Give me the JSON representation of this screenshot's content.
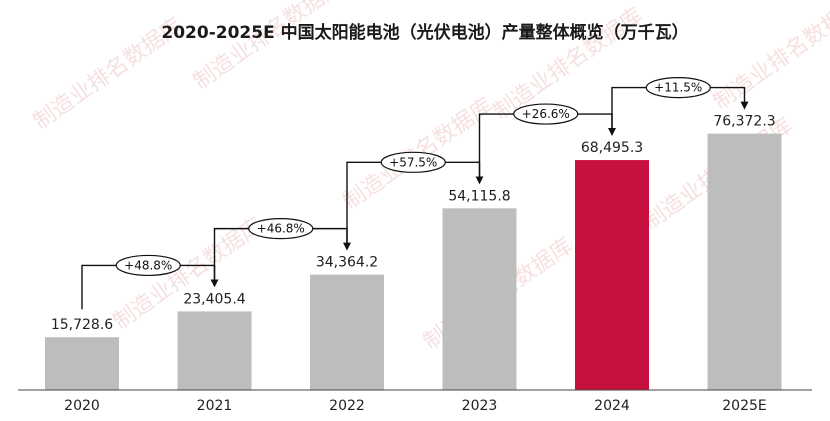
{
  "chart_data": {
    "type": "bar",
    "title": "2020-2025E 中国太阳能电池（光伏电池）产量整体概览（万千瓦）",
    "categories": [
      "2020",
      "2021",
      "2022",
      "2023",
      "2024",
      "2025E"
    ],
    "values": [
      15728.6,
      23405.4,
      34364.2,
      54115.8,
      68495.3,
      76372.3
    ],
    "value_labels": [
      "15,728.6",
      "23,405.4",
      "34,364.2",
      "54,115.8",
      "68,495.3",
      "76,372.3"
    ],
    "growth_labels": [
      "+48.8%",
      "+46.8%",
      "+57.5%",
      "+26.6%",
      "+11.5%"
    ],
    "highlight_index": 4,
    "ylim": [
      0,
      84000
    ],
    "grid": false,
    "colors": {
      "bar": "#bdbdbd",
      "highlight": "#c8103e",
      "axis": "#444444",
      "arrow": "#111111"
    }
  },
  "watermark": "制造业排名数据库"
}
